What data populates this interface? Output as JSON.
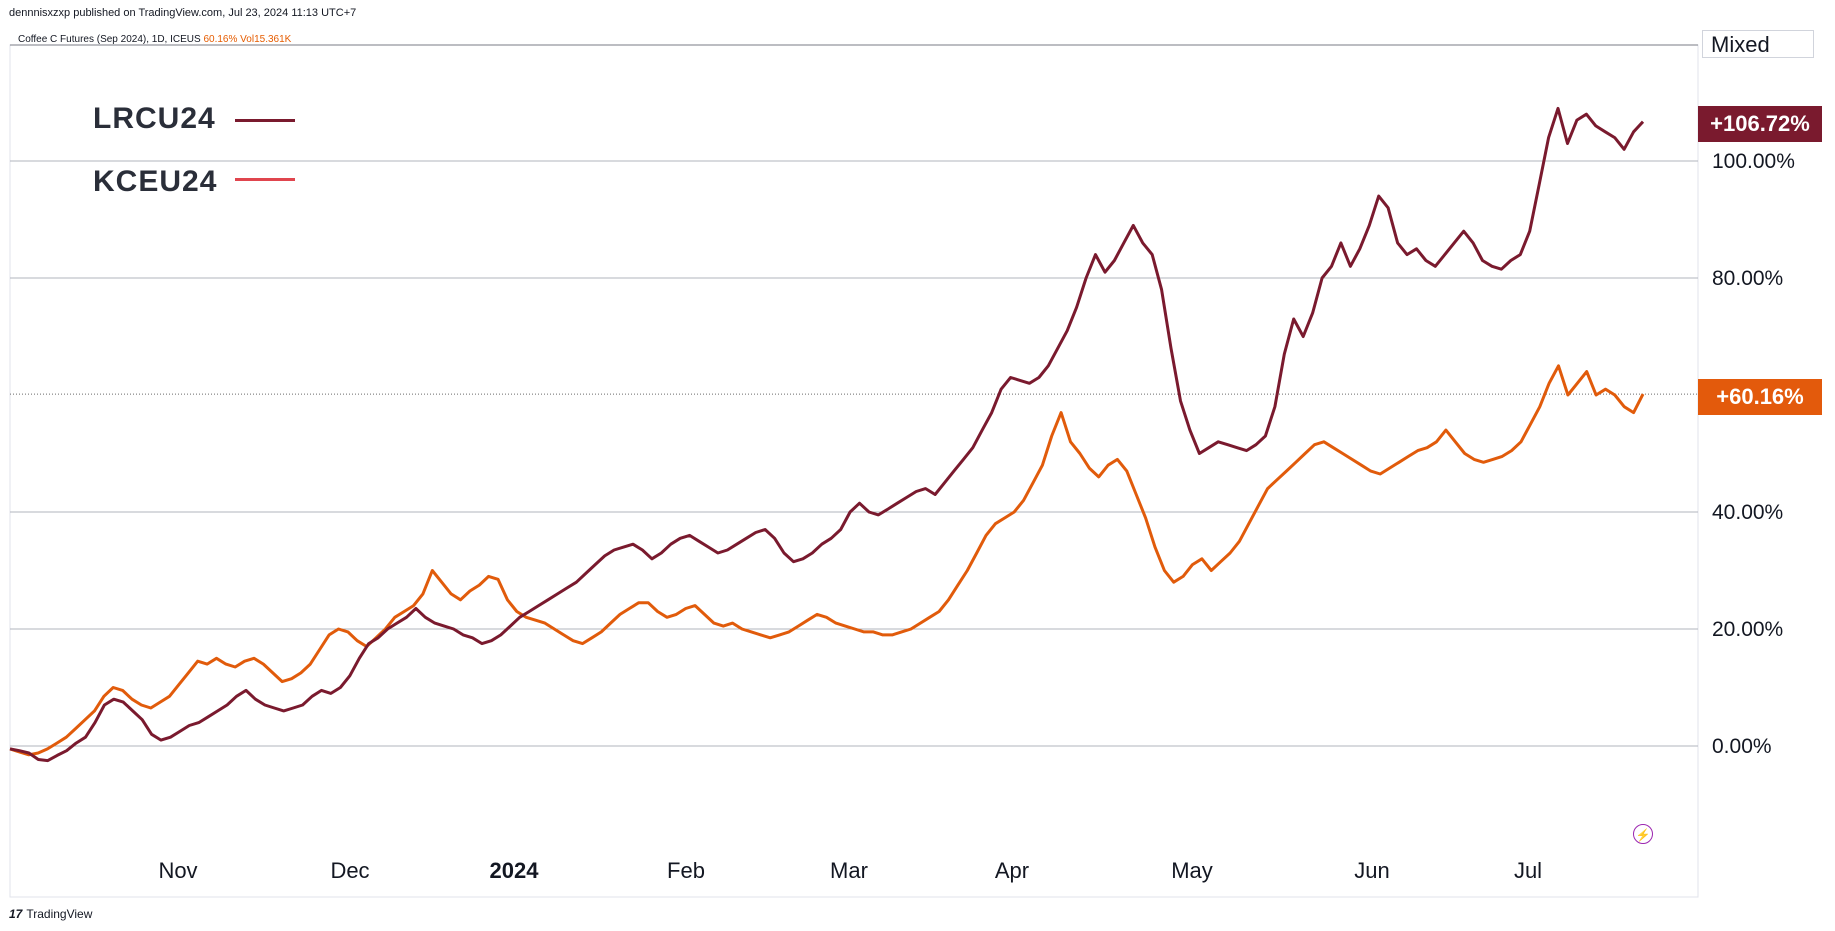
{
  "header": {
    "published_by": "dennnisxzxp published on TradingView.com, Jul 23, 2024 11:13 UTC+7",
    "symbol_text": "Coffee C Futures (Sep 2024), 1D, ICEUS",
    "symbol_change": "60.16%",
    "symbol_vol": "Vol15.361K"
  },
  "mode_label": "Mixed",
  "footer": {
    "logo_mark": "17",
    "brand": "TradingView"
  },
  "icons": {
    "flash": "lightning-icon",
    "logo": "tradingview-logo-icon"
  },
  "colors": {
    "lrc": "#7a1a2e",
    "kce": "#e15b0b",
    "grid": "#b2b5be",
    "tag_lrc": "#7a1a2e",
    "tag_kce": "#e35a0c"
  },
  "chart_data": {
    "type": "line",
    "x_ticks": [
      "Nov",
      "Dec",
      "2024",
      "Feb",
      "Mar",
      "Apr",
      "May",
      "Jun",
      "Jul"
    ],
    "y_ticks": [
      "0.00%",
      "20.00%",
      "40.00%",
      "80.00%",
      "100.00%"
    ],
    "ylim": [
      -14,
      120
    ],
    "grid": true,
    "legend": "top-left",
    "series": [
      {
        "name": "LRCU24",
        "last_label": "+106.72%",
        "values": [
          -0.5,
          -0.8,
          -1.2,
          -2.3,
          -2.5,
          -1.6,
          -0.8,
          0.5,
          1.5,
          4.0,
          7.0,
          8.0,
          7.5,
          6.0,
          4.5,
          2.0,
          1.0,
          1.5,
          2.5,
          3.5,
          4.0,
          5.0,
          6.0,
          7.0,
          8.5,
          9.5,
          8.0,
          7.0,
          6.5,
          6.0,
          6.5,
          7.0,
          8.5,
          9.5,
          9.0,
          10.0,
          12.0,
          15.0,
          17.5,
          18.5,
          20.0,
          21.0,
          22.0,
          23.5,
          22.0,
          21.0,
          20.5,
          20.0,
          19.0,
          18.5,
          17.5,
          18.0,
          19.0,
          20.5,
          22.0,
          23.0,
          24.0,
          25.0,
          26.0,
          27.0,
          28.0,
          29.5,
          31.0,
          32.5,
          33.5,
          34.0,
          34.5,
          33.5,
          32.0,
          33.0,
          34.5,
          35.5,
          36.0,
          35.0,
          34.0,
          33.0,
          33.5,
          34.5,
          35.5,
          36.5,
          37.0,
          35.5,
          33.0,
          31.5,
          32.0,
          33.0,
          34.5,
          35.5,
          37.0,
          40.0,
          41.5,
          40.0,
          39.5,
          40.5,
          41.5,
          42.5,
          43.5,
          44.0,
          43.0,
          45.0,
          47.0,
          49.0,
          51.0,
          54.0,
          57.0,
          61.0,
          63.0,
          62.5,
          62.0,
          63.0,
          65.0,
          68.0,
          71.0,
          75.0,
          80.0,
          84.0,
          81.0,
          83.0,
          86.0,
          89.0,
          86.0,
          84.0,
          78.0,
          68.0,
          59.0,
          54.0,
          50.0,
          51.0,
          52.0,
          51.5,
          51.0,
          50.5,
          51.5,
          53.0,
          58.0,
          67.0,
          73.0,
          70.0,
          74.0,
          80.0,
          82.0,
          86.0,
          82.0,
          85.0,
          89.0,
          94.0,
          92.0,
          86.0,
          84.0,
          85.0,
          83.0,
          82.0,
          84.0,
          86.0,
          88.0,
          86.0,
          83.0,
          82.0,
          81.5,
          83.0,
          84.0,
          88.0,
          96.0,
          104.0,
          109.0,
          103.0,
          107.0,
          108.0,
          106.0,
          105.0,
          104.0,
          102.0,
          105.0,
          106.72
        ]
      },
      {
        "name": "KCEU24",
        "last_label": "+60.16%",
        "values": [
          -0.5,
          -1.0,
          -1.5,
          -1.2,
          -0.5,
          0.5,
          1.5,
          3.0,
          4.5,
          6.0,
          8.5,
          10.0,
          9.5,
          8.0,
          7.0,
          6.5,
          7.5,
          8.5,
          10.5,
          12.5,
          14.5,
          14.0,
          15.0,
          14.0,
          13.5,
          14.5,
          15.0,
          14.0,
          12.5,
          11.0,
          11.5,
          12.5,
          14.0,
          16.5,
          19.0,
          20.0,
          19.5,
          18.0,
          17.0,
          18.5,
          20.0,
          22.0,
          23.0,
          24.0,
          26.0,
          30.0,
          28.0,
          26.0,
          25.0,
          26.5,
          27.5,
          29.0,
          28.5,
          25.0,
          23.0,
          22.0,
          21.5,
          21.0,
          20.0,
          19.0,
          18.0,
          17.5,
          18.5,
          19.5,
          21.0,
          22.5,
          23.5,
          24.5,
          24.5,
          23.0,
          22.0,
          22.5,
          23.5,
          24.0,
          22.5,
          21.0,
          20.5,
          21.0,
          20.0,
          19.5,
          19.0,
          18.5,
          19.0,
          19.5,
          20.5,
          21.5,
          22.5,
          22.0,
          21.0,
          20.5,
          20.0,
          19.5,
          19.5,
          19.0,
          19.0,
          19.5,
          20.0,
          21.0,
          22.0,
          23.0,
          25.0,
          27.5,
          30.0,
          33.0,
          36.0,
          38.0,
          39.0,
          40.0,
          42.0,
          45.0,
          48.0,
          53.0,
          57.0,
          52.0,
          50.0,
          47.5,
          46.0,
          48.0,
          49.0,
          47.0,
          43.0,
          39.0,
          34.0,
          30.0,
          28.0,
          29.0,
          31.0,
          32.0,
          30.0,
          31.5,
          33.0,
          35.0,
          38.0,
          41.0,
          44.0,
          45.5,
          47.0,
          48.5,
          50.0,
          51.5,
          52.0,
          51.0,
          50.0,
          49.0,
          48.0,
          47.0,
          46.5,
          47.5,
          48.5,
          49.5,
          50.5,
          51.0,
          52.0,
          54.0,
          52.0,
          50.0,
          49.0,
          48.5,
          49.0,
          49.5,
          50.5,
          52.0,
          55.0,
          58.0,
          62.0,
          65.0,
          60.0,
          62.0,
          64.0,
          60.0,
          61.0,
          60.0,
          58.0,
          57.0,
          60.16
        ]
      }
    ]
  }
}
